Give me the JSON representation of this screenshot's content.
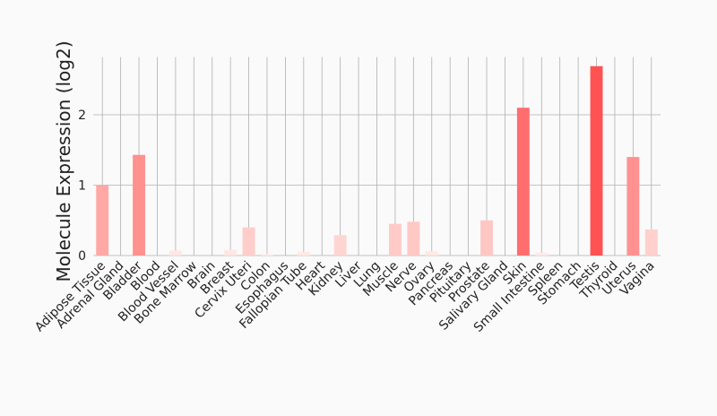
{
  "chart_data": {
    "type": "bar",
    "ylabel": "Molecule Expression (log2)",
    "xlabel": "",
    "ylim": [
      0,
      2.82
    ],
    "yticks": [
      0,
      1,
      2
    ],
    "grid": true,
    "categories": [
      "Adipose Tissue",
      "Adrenal Gland",
      "Bladder",
      "Blood",
      "Blood Vessel",
      "Bone Marrow",
      "Brain",
      "Breast",
      "Cervix Uteri",
      "Colon",
      "Esophagus",
      "Fallopian Tube",
      "Heart",
      "Kidney",
      "Liver",
      "Lung",
      "Muscle",
      "Nerve",
      "Ovary",
      "Pancreas",
      "Pituitary",
      "Prostate",
      "Salivary Gland",
      "Skin",
      "Small Intestine",
      "Spleen",
      "Stomach",
      "Testis",
      "Thyroid",
      "Uterus",
      "Vagina"
    ],
    "values": [
      1.0,
      0.0,
      1.43,
      0.0,
      0.07,
      0.0,
      0.0,
      0.08,
      0.4,
      0.02,
      0.0,
      0.05,
      0.0,
      0.29,
      0.0,
      0.0,
      0.45,
      0.48,
      0.06,
      0.0,
      0.0,
      0.5,
      0.0,
      2.1,
      0.04,
      0.0,
      0.0,
      2.69,
      0.0,
      1.4,
      0.37
    ],
    "color_low": "#fff0ec",
    "color_high": "#ff5252"
  }
}
